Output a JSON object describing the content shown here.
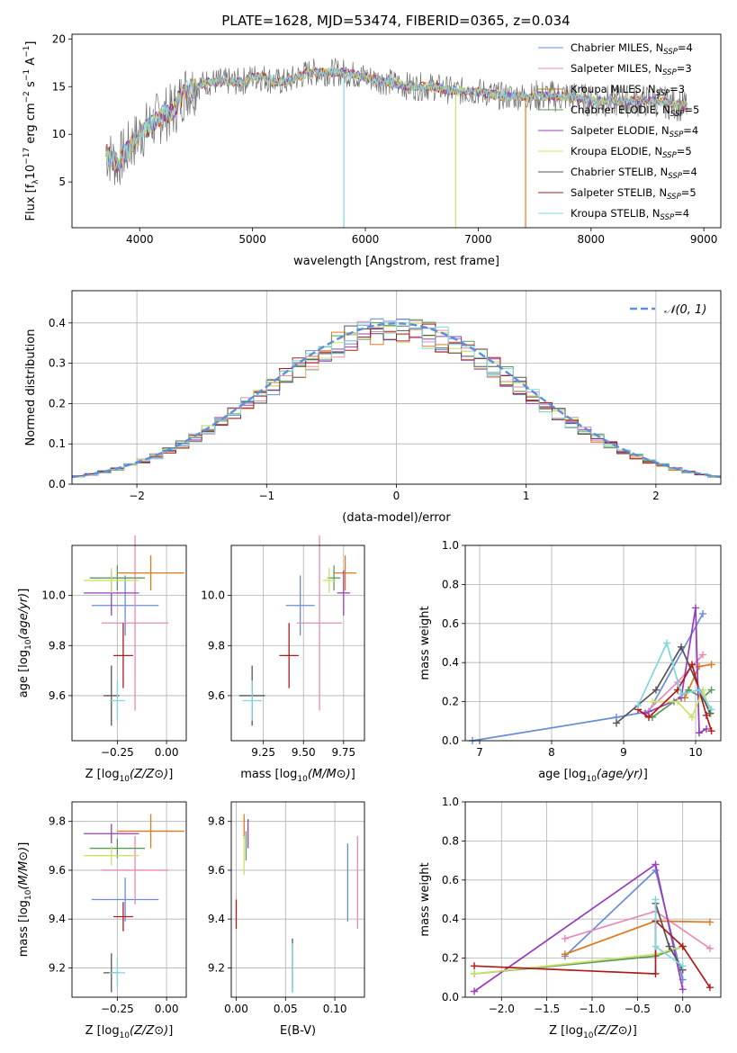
{
  "figure_title": "PLATE=1628, MJD=53474, FIBERID=0365, z=0.034",
  "colors": {
    "Chabrier MILES": "#6a8cd8",
    "Salpeter MILES": "#e68ab8",
    "Kroupa MILES": "#a8841c",
    "Chabrier ELODIE": "#5a9a5a",
    "Salpeter ELODIE": "#9a3dbb",
    "Kroupa ELODIE": "#cde06a",
    "Chabrier STELIB": "#555555",
    "Salpeter STELIB": "#b01a1a",
    "Kroupa STELIB": "#7fd6e0",
    "orange": "#e07a1f",
    "normal_curve": "#5b8fd9"
  },
  "chart_data": [
    {
      "id": "spectrum",
      "type": "line",
      "xlabel": "wavelength [Angstrom, rest frame]",
      "ylabel": "Flux [f_λ10^-17 erg cm^-2 s^-1 A^-1]",
      "xlim": [
        3400,
        9150
      ],
      "ylim": [
        0.2,
        20.5
      ],
      "xticks": [
        4000,
        5000,
        6000,
        7000,
        8000,
        9000
      ],
      "yticks": [
        5,
        10,
        15,
        20
      ],
      "legend_position": "top-right",
      "legend": [
        {
          "label": "Chabrier MILES, N",
          "sub": "SSP",
          "tail": "=4",
          "color": "#6a8cd8"
        },
        {
          "label": "Salpeter MILES, N",
          "sub": "SSP",
          "tail": "=3",
          "color": "#e68ab8"
        },
        {
          "label": "Kroupa MILES, N",
          "sub": "SSP",
          "tail": "=3",
          "color": "#a8841c"
        },
        {
          "label": "Chabrier ELODIE, N",
          "sub": "SSP",
          "tail": "=5",
          "color": "#5a9a5a"
        },
        {
          "label": "Salpeter ELODIE, N",
          "sub": "SSP",
          "tail": "=4",
          "color": "#9a3dbb"
        },
        {
          "label": "Kroupa ELODIE, N",
          "sub": "SSP",
          "tail": "=5",
          "color": "#cde06a"
        },
        {
          "label": "Chabrier STELIB, N",
          "sub": "SSP",
          "tail": "=4",
          "color": "#555555"
        },
        {
          "label": "Salpeter STELIB, N",
          "sub": "SSP",
          "tail": "=5",
          "color": "#b01a1a"
        },
        {
          "label": "Kroupa STELIB, N",
          "sub": "SSP",
          "tail": "=4",
          "color": "#7fd6e0"
        }
      ],
      "continuum": [
        [
          3700,
          8.0
        ],
        [
          3800,
          7.0
        ],
        [
          3900,
          8.5
        ],
        [
          4000,
          10.0
        ],
        [
          4100,
          11.0
        ],
        [
          4200,
          12.0
        ],
        [
          4300,
          12.5
        ],
        [
          4400,
          14.5
        ],
        [
          4500,
          15.0
        ],
        [
          4600,
          15.5
        ],
        [
          4700,
          15.5
        ],
        [
          4800,
          15.5
        ],
        [
          4900,
          15.5
        ],
        [
          5000,
          16.0
        ],
        [
          5100,
          16.0
        ],
        [
          5200,
          15.5
        ],
        [
          5300,
          15.5
        ],
        [
          5400,
          16.0
        ],
        [
          5500,
          16.5
        ],
        [
          5600,
          16.5
        ],
        [
          5800,
          16.5
        ],
        [
          6000,
          16.0
        ],
        [
          6200,
          15.5
        ],
        [
          6400,
          15.0
        ],
        [
          6600,
          15.0
        ],
        [
          6800,
          14.5
        ],
        [
          7000,
          14.5
        ],
        [
          7200,
          14.0
        ],
        [
          7400,
          14.0
        ],
        [
          7600,
          14.0
        ],
        [
          7800,
          14.0
        ],
        [
          8000,
          13.5
        ],
        [
          8200,
          13.5
        ],
        [
          8400,
          13.5
        ],
        [
          8600,
          13.5
        ],
        [
          8800,
          13.0
        ]
      ],
      "features": [
        {
          "series": "Kroupa STELIB",
          "x_start": 5810,
          "x_end": 6020,
          "note_value": 0.2
        },
        {
          "series": "Kroupa ELODIE",
          "x_start": 6800,
          "x_end": 9150,
          "note_value": 0.2
        },
        {
          "series": "orange",
          "x_start": 7420,
          "x_end": 9150,
          "note_value": 0.2
        }
      ]
    },
    {
      "id": "residuals",
      "type": "histogram",
      "xlabel": "(data-model)/error",
      "ylabel": "Normed distribution",
      "xlim": [
        -2.5,
        2.5
      ],
      "ylim": [
        0,
        0.48
      ],
      "xticks": [
        -2,
        -1,
        0,
        1,
        2
      ],
      "yticks": [
        0.0,
        0.1,
        0.2,
        0.3,
        0.4
      ],
      "grid": true,
      "legend_position": "top-right",
      "legend": [
        {
          "label": "𝒩(0, 1)",
          "color": "#5b8fd9",
          "style": "dashed"
        }
      ],
      "bin_width": 0.1,
      "bin_start": -2.5,
      "series_colors": [
        "#6a8cd8",
        "#e68ab8",
        "#e07a1f",
        "#5a9a5a",
        "#9a3dbb",
        "#cde06a",
        "#555555",
        "#b01a1a",
        "#7fd6e0"
      ]
    },
    {
      "id": "age-metallicity",
      "type": "scatter",
      "xlabel": "Z [log10(Z/Z⊙)]",
      "ylabel": "age [log10(age/yr)]",
      "xlim": [
        -0.48,
        0.1
      ],
      "ylim": [
        9.42,
        10.2
      ],
      "xticks": [
        -0.25,
        0.0
      ],
      "yticks": [
        9.6,
        9.8,
        10.0
      ],
      "grid": true,
      "points": [
        {
          "color": "#6a8cd8",
          "x": -0.21,
          "xerr": 0.17,
          "y": 9.96,
          "yerr": 0.12
        },
        {
          "color": "#e68ab8",
          "x": -0.16,
          "xerr": 0.17,
          "y": 9.89,
          "yerr": 0.35
        },
        {
          "color": "#e07a1f",
          "x": -0.08,
          "xerr": 0.17,
          "y": 10.09,
          "yerr": 0.07
        },
        {
          "color": "#5a9a5a",
          "x": -0.25,
          "xerr": 0.14,
          "y": 10.07,
          "yerr": 0.05
        },
        {
          "color": "#9a3dbb",
          "x": -0.28,
          "xerr": 0.14,
          "y": 10.01,
          "yerr": 0.09
        },
        {
          "color": "#cde06a",
          "x": -0.28,
          "xerr": 0.14,
          "y": 10.06,
          "yerr": 0.05
        },
        {
          "color": "#555555",
          "x": -0.28,
          "xerr": 0.04,
          "y": 9.6,
          "yerr": 0.12
        },
        {
          "color": "#b01a1a",
          "x": -0.22,
          "xerr": 0.05,
          "y": 9.76,
          "yerr": 0.13
        },
        {
          "color": "#7fd6e0",
          "x": -0.25,
          "xerr": 0.04,
          "y": 9.58,
          "yerr": 0.08
        }
      ]
    },
    {
      "id": "age-mass",
      "type": "scatter",
      "xlabel": "mass [log10(M/M⊙)]",
      "ylabel": "",
      "xlim": [
        9.05,
        9.88
      ],
      "ylim": [
        9.42,
        10.2
      ],
      "xticks": [
        9.25,
        9.5,
        9.75
      ],
      "yticks": [
        9.6,
        9.8,
        10.0
      ],
      "grid": true,
      "points": [
        {
          "color": "#6a8cd8",
          "x": 9.48,
          "xerr": 0.09,
          "y": 9.96,
          "yerr": 0.12
        },
        {
          "color": "#e68ab8",
          "x": 9.6,
          "xerr": 0.14,
          "y": 9.89,
          "yerr": 0.35
        },
        {
          "color": "#e07a1f",
          "x": 9.76,
          "xerr": 0.07,
          "y": 10.09,
          "yerr": 0.07
        },
        {
          "color": "#5a9a5a",
          "x": 9.69,
          "xerr": 0.04,
          "y": 10.07,
          "yerr": 0.05
        },
        {
          "color": "#9a3dbb",
          "x": 9.75,
          "xerr": 0.04,
          "y": 10.01,
          "yerr": 0.09
        },
        {
          "color": "#cde06a",
          "x": 9.66,
          "xerr": 0.04,
          "y": 10.06,
          "yerr": 0.05
        },
        {
          "color": "#555555",
          "x": 9.18,
          "xerr": 0.08,
          "y": 9.6,
          "yerr": 0.12
        },
        {
          "color": "#b01a1a",
          "x": 9.41,
          "xerr": 0.06,
          "y": 9.76,
          "yerr": 0.13
        },
        {
          "color": "#7fd6e0",
          "x": 9.18,
          "xerr": 0.06,
          "y": 9.58,
          "yerr": 0.08
        }
      ]
    },
    {
      "id": "weight-vs-age",
      "type": "line",
      "xlabel": "age [log10(age/yr)]",
      "ylabel": "mass weight",
      "xlim": [
        6.8,
        10.35
      ],
      "ylim": [
        0,
        1.0
      ],
      "xticks": [
        7,
        8,
        9,
        10
      ],
      "yticks": [
        0.0,
        0.2,
        0.4,
        0.6,
        0.8,
        1.0
      ],
      "grid": true,
      "series": [
        {
          "color": "#6a8cd8",
          "x": [
            6.9,
            8.9,
            9.35,
            10.1
          ],
          "y": [
            0.0,
            0.12,
            0.15,
            0.65
          ]
        },
        {
          "color": "#e68ab8",
          "x": [
            9.3,
            9.75,
            10.1
          ],
          "y": [
            0.14,
            0.3,
            0.44
          ]
        },
        {
          "color": "#e07a1f",
          "x": [
            9.85,
            10.05,
            10.22
          ],
          "y": [
            0.22,
            0.38,
            0.39
          ]
        },
        {
          "color": "#5a9a5a",
          "x": [
            9.4,
            9.7,
            9.9,
            10.1,
            10.22
          ],
          "y": [
            0.12,
            0.2,
            0.26,
            0.22,
            0.26
          ]
        },
        {
          "color": "#9a3dbb",
          "x": [
            9.3,
            9.8,
            10.0,
            10.05,
            10.15
          ],
          "y": [
            0.14,
            0.22,
            0.68,
            0.04,
            0.06
          ]
        },
        {
          "color": "#cde06a",
          "x": [
            9.4,
            9.75,
            9.95,
            10.1,
            10.22
          ],
          "y": [
            0.2,
            0.2,
            0.12,
            0.26,
            0.14
          ]
        },
        {
          "color": "#555555",
          "x": [
            8.9,
            9.45,
            9.8,
            10.2
          ],
          "y": [
            0.09,
            0.26,
            0.48,
            0.14
          ]
        },
        {
          "color": "#b01a1a",
          "x": [
            9.2,
            9.35,
            9.75,
            9.95,
            10.15,
            10.22
          ],
          "y": [
            0.16,
            0.12,
            0.26,
            0.39,
            0.13,
            0.05
          ]
        },
        {
          "color": "#7fd6e0",
          "x": [
            9.2,
            9.6,
            9.8,
            10.05,
            10.22
          ],
          "y": [
            0.18,
            0.5,
            0.24,
            0.26,
            0.16
          ]
        }
      ]
    },
    {
      "id": "mass-metallicity",
      "type": "scatter",
      "xlabel": "Z [log10(Z/Z⊙)]",
      "ylabel": "mass [log10(M/M⊙)]",
      "xlim": [
        -0.48,
        0.1
      ],
      "ylim": [
        9.08,
        9.88
      ],
      "xticks": [
        -0.25,
        0.0
      ],
      "yticks": [
        9.2,
        9.4,
        9.6,
        9.8
      ],
      "grid": true,
      "points": [
        {
          "color": "#6a8cd8",
          "x": -0.21,
          "xerr": 0.17,
          "y": 9.48,
          "yerr": 0.09
        },
        {
          "color": "#e68ab8",
          "x": -0.16,
          "xerr": 0.17,
          "y": 9.6,
          "yerr": 0.14
        },
        {
          "color": "#e07a1f",
          "x": -0.08,
          "xerr": 0.17,
          "y": 9.76,
          "yerr": 0.07
        },
        {
          "color": "#5a9a5a",
          "x": -0.25,
          "xerr": 0.14,
          "y": 9.69,
          "yerr": 0.04
        },
        {
          "color": "#9a3dbb",
          "x": -0.28,
          "xerr": 0.14,
          "y": 9.75,
          "yerr": 0.04
        },
        {
          "color": "#cde06a",
          "x": -0.28,
          "xerr": 0.14,
          "y": 9.66,
          "yerr": 0.04
        },
        {
          "color": "#555555",
          "x": -0.28,
          "xerr": 0.04,
          "y": 9.18,
          "yerr": 0.08
        },
        {
          "color": "#b01a1a",
          "x": -0.22,
          "xerr": 0.05,
          "y": 9.41,
          "yerr": 0.06
        },
        {
          "color": "#7fd6e0",
          "x": -0.25,
          "xerr": 0.04,
          "y": 9.18,
          "yerr": 0.06
        }
      ]
    },
    {
      "id": "mass-extinction",
      "type": "scatter",
      "xlabel": "E(B-V)",
      "ylabel": "",
      "xlim": [
        -0.005,
        0.13
      ],
      "ylim": [
        9.08,
        9.88
      ],
      "xticks": [
        0.0,
        0.05,
        0.1
      ],
      "yticks": [
        9.2,
        9.4,
        9.6,
        9.8
      ],
      "grid": true,
      "points": [
        {
          "color": "#6a8cd8",
          "x": 0.113,
          "xerr": 0.0,
          "y": 9.55,
          "yerr": 0.16
        },
        {
          "color": "#e68ab8",
          "x": 0.123,
          "xerr": 0.0,
          "y": 9.55,
          "yerr": 0.19
        },
        {
          "color": "#e07a1f",
          "x": 0.008,
          "xerr": 0.0,
          "y": 9.78,
          "yerr": 0.05
        },
        {
          "color": "#5a9a5a",
          "x": 0.01,
          "xerr": 0.0,
          "y": 9.7,
          "yerr": 0.06
        },
        {
          "color": "#9a3dbb",
          "x": 0.012,
          "xerr": 0.0,
          "y": 9.75,
          "yerr": 0.06
        },
        {
          "color": "#cde06a",
          "x": 0.008,
          "xerr": 0.0,
          "y": 9.66,
          "yerr": 0.08
        },
        {
          "color": "#555555",
          "x": 0.057,
          "xerr": 0.0,
          "y": 9.21,
          "yerr": 0.11
        },
        {
          "color": "#b01a1a",
          "x": 0.0,
          "xerr": 0.0,
          "y": 9.42,
          "yerr": 0.06
        },
        {
          "color": "#7fd6e0",
          "x": 0.057,
          "xerr": 0.0,
          "y": 9.2,
          "yerr": 0.1
        }
      ]
    },
    {
      "id": "weight-vs-metallicity",
      "type": "line",
      "xlabel": "Z [log10(Z/Z⊙)]",
      "ylabel": "mass weight",
      "xlim": [
        -2.4,
        0.42
      ],
      "ylim": [
        0,
        1.0
      ],
      "xticks": [
        -2.0,
        -1.5,
        -1.0,
        -0.5,
        0.0
      ],
      "yticks": [
        0.0,
        0.2,
        0.4,
        0.6,
        0.8,
        1.0
      ],
      "grid": true,
      "series": [
        {
          "color": "#6a8cd8",
          "x": [
            -1.3,
            -0.3,
            0.0
          ],
          "y": [
            0.21,
            0.65,
            0.09
          ]
        },
        {
          "color": "#e68ab8",
          "x": [
            -1.3,
            -0.3,
            0.3
          ],
          "y": [
            0.3,
            0.44,
            0.25
          ]
        },
        {
          "color": "#e07a1f",
          "x": [
            -1.3,
            -0.3,
            0.3
          ],
          "y": [
            0.22,
            0.39,
            0.385
          ]
        },
        {
          "color": "#5a9a5a",
          "x": [
            -2.3,
            -0.3,
            0.0
          ],
          "y": [
            0.12,
            0.21,
            0.26
          ]
        },
        {
          "color": "#9a3dbb",
          "x": [
            -2.3,
            -0.3,
            0.0
          ],
          "y": [
            0.03,
            0.68,
            0.04
          ]
        },
        {
          "color": "#cde06a",
          "x": [
            -2.3,
            -0.3,
            0.0
          ],
          "y": [
            0.12,
            0.22,
            0.26
          ]
        },
        {
          "color": "#555555",
          "x": [
            -0.3,
            -0.15,
            0.0
          ],
          "y": [
            0.48,
            0.26,
            0.14
          ]
        },
        {
          "color": "#b01a1a",
          "x": [
            -2.3,
            -0.3,
            -0.3,
            0.0,
            0.3
          ],
          "y": [
            0.16,
            0.12,
            0.39,
            0.26,
            0.05
          ]
        },
        {
          "color": "#7fd6e0",
          "x": [
            -0.3,
            -0.3,
            0.0
          ],
          "y": [
            0.5,
            0.26,
            0.16
          ]
        }
      ]
    }
  ]
}
